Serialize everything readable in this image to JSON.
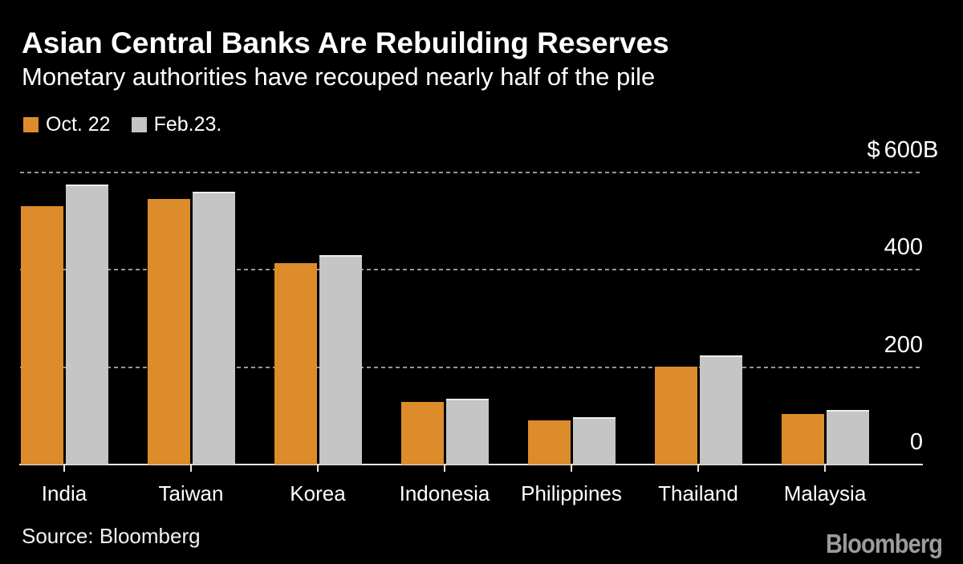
{
  "title": "Asian Central Banks Are Rebuilding Reserves",
  "subtitle": "Monetary authorities have recouped nearly half of the pile",
  "source": "Source: Bloomberg",
  "brand": "Bloomberg",
  "colors": {
    "background": "#000000",
    "oct22_orange": "#DD8C2B",
    "feb23_gray": "#C5C5C5",
    "gridline_gray": "#969696",
    "axis_white": "#E8E8E8",
    "text_white": "#FFFFFF",
    "logo_gray": "#9B9B9B"
  },
  "legend": [
    {
      "label": "Oct. 22",
      "color": "#DD8C2B"
    },
    {
      "label": "Feb.23.",
      "color": "#C5C5C5"
    }
  ],
  "chart_data": {
    "type": "bar",
    "title": "Asian Central Banks Are Rebuilding Reserves",
    "subtitle": "Monetary authorities have recouped nearly half of the pile",
    "categories": [
      "India",
      "Taiwan",
      "Korea",
      "Indonesia",
      "Philippines",
      "Thailand",
      "Malaysia"
    ],
    "series": [
      {
        "name": "Oct. 22",
        "color": "#DD8C2B",
        "values": [
          531,
          546,
          414,
          129,
          91,
          201,
          104
        ]
      },
      {
        "name": "Feb.23.",
        "color": "#C5C5C5",
        "values": [
          576,
          560,
          430,
          135,
          97,
          224,
          112
        ]
      }
    ],
    "unit": "$B",
    "xlabel": "",
    "ylabel": "",
    "ylim": [
      0,
      600
    ],
    "yticks": [
      {
        "value": 600,
        "label": "$600B"
      },
      {
        "value": 400,
        "label": "400"
      },
      {
        "value": 200,
        "label": "200"
      },
      {
        "value": 0,
        "label": "0"
      }
    ],
    "grid": "dashed-horizontal",
    "legend_position": "top-left",
    "annotations": []
  }
}
